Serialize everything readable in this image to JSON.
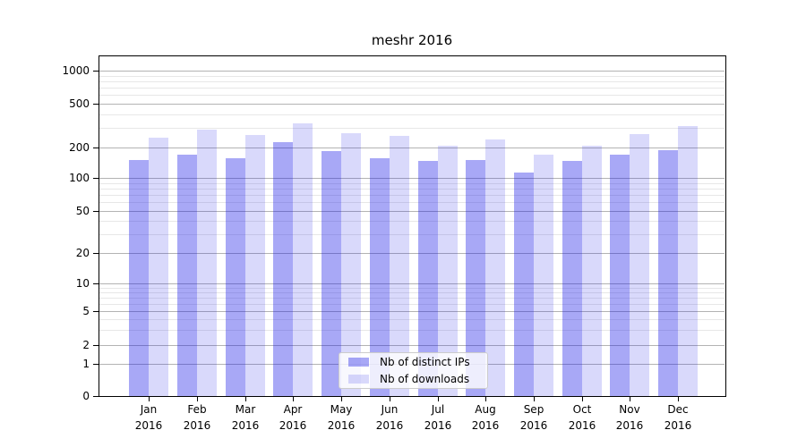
{
  "chart_data": {
    "type": "bar",
    "title": "meshr 2016",
    "categories": [
      "Jan",
      "Feb",
      "Mar",
      "Apr",
      "May",
      "Jun",
      "Jul",
      "Aug",
      "Sep",
      "Oct",
      "Nov",
      "Dec"
    ],
    "year_label": "2016",
    "series": [
      {
        "name": "Nb of distinct IPs",
        "color": "rgba(20,20,231,0.37)",
        "values": [
          150,
          170,
          158,
          225,
          184,
          158,
          146,
          151,
          113,
          148,
          170,
          188
        ]
      },
      {
        "name": "Nb of downloads",
        "color": "rgba(20,20,231,0.16)",
        "values": [
          245,
          290,
          262,
          332,
          268,
          256,
          207,
          238,
          170,
          207,
          266,
          312
        ]
      }
    ],
    "y_axis": {
      "scale": "symlog",
      "ticks": [
        0,
        1,
        2,
        5,
        10,
        20,
        50,
        100,
        200,
        500,
        1000
      ]
    },
    "x_axis": {
      "tick_labels_line1": [
        "Jan",
        "Feb",
        "Mar",
        "Apr",
        "May",
        "Jun",
        "Jul",
        "Aug",
        "Sep",
        "Oct",
        "Nov",
        "Dec"
      ],
      "tick_labels_line2": "2016"
    },
    "legend": {
      "position": "bottom-center",
      "entries": [
        "Nb of distinct IPs",
        "Nb of downloads"
      ]
    },
    "colors": {
      "background": "#ffffff",
      "grid_major": "#b3b3b3",
      "grid_minor": "#e7e7e7",
      "spine": "#000000",
      "bar_dark": "rgba(20,20,231,0.37)",
      "bar_light": "rgba(20,20,231,0.16)"
    },
    "grid": "on"
  }
}
